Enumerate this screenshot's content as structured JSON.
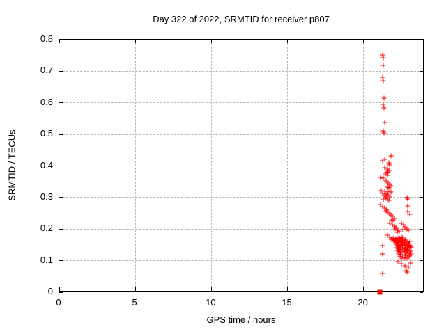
{
  "chart_data": {
    "type": "scatter",
    "title": "Day 322 of 2022, SRMTID for receiver p807",
    "xlabel": "GPS time / hours",
    "ylabel": "SRMTID / TECUs",
    "xlim": [
      0,
      24
    ],
    "ylim": [
      0,
      0.8
    ],
    "x_ticks": [
      {
        "value": 0,
        "label": "0"
      },
      {
        "value": 5,
        "label": "5"
      },
      {
        "value": 10,
        "label": "10"
      },
      {
        "value": 15,
        "label": "15"
      },
      {
        "value": 20,
        "label": "20"
      }
    ],
    "y_ticks": [
      {
        "value": 0.0,
        "label": "0"
      },
      {
        "value": 0.1,
        "label": "0.1"
      },
      {
        "value": 0.2,
        "label": "0.2"
      },
      {
        "value": 0.3,
        "label": "0.3"
      },
      {
        "value": 0.4,
        "label": "0.4"
      },
      {
        "value": 0.5,
        "label": "0.5"
      },
      {
        "value": 0.6,
        "label": "0.6"
      },
      {
        "value": 0.7,
        "label": "0.7"
      },
      {
        "value": 0.8,
        "label": "0.8"
      }
    ],
    "grid": "dashed",
    "legend": "none",
    "marker": "plus",
    "marker_color": "#ff0000",
    "grid_color": "#b4b4b4",
    "axis_color": "#000000",
    "background_color": "#ffffff",
    "points": [
      [
        21.27,
        0.752
      ],
      [
        21.28,
        0.742
      ],
      [
        21.3,
        0.718
      ],
      [
        21.27,
        0.681
      ],
      [
        21.29,
        0.669
      ],
      [
        21.33,
        0.615
      ],
      [
        21.3,
        0.596
      ],
      [
        21.36,
        0.585
      ],
      [
        21.4,
        0.538
      ],
      [
        21.32,
        0.512
      ],
      [
        21.36,
        0.505
      ],
      [
        21.79,
        0.431
      ],
      [
        21.4,
        0.42
      ],
      [
        21.25,
        0.417
      ],
      [
        21.68,
        0.409
      ],
      [
        21.7,
        0.404
      ],
      [
        21.37,
        0.394
      ],
      [
        21.59,
        0.391
      ],
      [
        21.72,
        0.386
      ],
      [
        21.63,
        0.382
      ],
      [
        21.52,
        0.379
      ],
      [
        21.45,
        0.374
      ],
      [
        21.56,
        0.371
      ],
      [
        21.12,
        0.364
      ],
      [
        21.3,
        0.361
      ],
      [
        21.49,
        0.352
      ],
      [
        21.62,
        0.346
      ],
      [
        21.71,
        0.342
      ],
      [
        21.8,
        0.337
      ],
      [
        21.58,
        0.333
      ],
      [
        21.67,
        0.33
      ],
      [
        21.16,
        0.322
      ],
      [
        21.39,
        0.32
      ],
      [
        21.58,
        0.319
      ],
      [
        21.8,
        0.317
      ],
      [
        21.26,
        0.313
      ],
      [
        21.49,
        0.311
      ],
      [
        21.62,
        0.308
      ],
      [
        21.35,
        0.306
      ],
      [
        21.53,
        0.303
      ],
      [
        21.71,
        0.301
      ],
      [
        21.44,
        0.298
      ],
      [
        21.59,
        0.296
      ],
      [
        21.3,
        0.294
      ],
      [
        21.66,
        0.292
      ],
      [
        21.12,
        0.278
      ],
      [
        21.26,
        0.271
      ],
      [
        21.39,
        0.267
      ],
      [
        21.53,
        0.263
      ],
      [
        21.49,
        0.258
      ],
      [
        21.62,
        0.253
      ],
      [
        21.71,
        0.249
      ],
      [
        21.8,
        0.245
      ],
      [
        21.9,
        0.24
      ],
      [
        22.03,
        0.234
      ],
      [
        21.94,
        0.229
      ],
      [
        21.85,
        0.226
      ],
      [
        21.71,
        0.218
      ],
      [
        21.9,
        0.214
      ],
      [
        22.03,
        0.209
      ],
      [
        22.17,
        0.205
      ],
      [
        22.08,
        0.201
      ],
      [
        22.26,
        0.196
      ],
      [
        22.35,
        0.192
      ],
      [
        22.21,
        0.19
      ],
      [
        22.49,
        0.218
      ],
      [
        22.63,
        0.214
      ],
      [
        22.72,
        0.207
      ],
      [
        22.86,
        0.201
      ],
      [
        22.95,
        0.196
      ],
      [
        22.58,
        0.199
      ],
      [
        21.58,
        0.181
      ],
      [
        21.71,
        0.174
      ],
      [
        21.8,
        0.168
      ],
      [
        21.9,
        0.17
      ],
      [
        21.99,
        0.16
      ],
      [
        22.08,
        0.165
      ],
      [
        22.17,
        0.157
      ],
      [
        22.26,
        0.163
      ],
      [
        22.44,
        0.159
      ],
      [
        22.84,
        0.3
      ],
      [
        22.9,
        0.295
      ],
      [
        22.9,
        0.273
      ],
      [
        22.91,
        0.256
      ],
      [
        23.04,
        0.247
      ],
      [
        22.0,
        0.172
      ],
      [
        22.1,
        0.17
      ],
      [
        22.2,
        0.168
      ],
      [
        22.3,
        0.171
      ],
      [
        22.4,
        0.169
      ],
      [
        22.5,
        0.166
      ],
      [
        22.6,
        0.17
      ],
      [
        22.7,
        0.167
      ],
      [
        22.35,
        0.173
      ],
      [
        22.55,
        0.174
      ],
      [
        22.05,
        0.162
      ],
      [
        22.15,
        0.158
      ],
      [
        22.25,
        0.16
      ],
      [
        22.35,
        0.156
      ],
      [
        22.45,
        0.161
      ],
      [
        22.55,
        0.157
      ],
      [
        22.65,
        0.159
      ],
      [
        22.75,
        0.162
      ],
      [
        22.85,
        0.158
      ],
      [
        22.95,
        0.155
      ],
      [
        23.05,
        0.16
      ],
      [
        22.1,
        0.152
      ],
      [
        22.2,
        0.148
      ],
      [
        22.3,
        0.15
      ],
      [
        22.4,
        0.146
      ],
      [
        22.5,
        0.151
      ],
      [
        22.6,
        0.147
      ],
      [
        22.7,
        0.149
      ],
      [
        22.8,
        0.152
      ],
      [
        22.9,
        0.146
      ],
      [
        23.0,
        0.15
      ],
      [
        23.1,
        0.148
      ],
      [
        22.15,
        0.142
      ],
      [
        22.25,
        0.138
      ],
      [
        22.35,
        0.14
      ],
      [
        22.45,
        0.136
      ],
      [
        22.55,
        0.141
      ],
      [
        22.65,
        0.137
      ],
      [
        22.75,
        0.139
      ],
      [
        22.85,
        0.142
      ],
      [
        22.95,
        0.136
      ],
      [
        23.05,
        0.14
      ],
      [
        23.15,
        0.143
      ],
      [
        22.2,
        0.132
      ],
      [
        22.3,
        0.128
      ],
      [
        22.4,
        0.13
      ],
      [
        22.5,
        0.126
      ],
      [
        22.6,
        0.131
      ],
      [
        22.7,
        0.127
      ],
      [
        22.8,
        0.129
      ],
      [
        22.9,
        0.132
      ],
      [
        23.0,
        0.126
      ],
      [
        23.1,
        0.13
      ],
      [
        22.3,
        0.122
      ],
      [
        22.45,
        0.118
      ],
      [
        22.6,
        0.12
      ],
      [
        22.75,
        0.116
      ],
      [
        22.9,
        0.121
      ],
      [
        23.05,
        0.117
      ],
      [
        23.15,
        0.122
      ],
      [
        22.4,
        0.112
      ],
      [
        22.55,
        0.108
      ],
      [
        22.7,
        0.11
      ],
      [
        22.85,
        0.107
      ],
      [
        23.0,
        0.112
      ],
      [
        22.26,
        0.097
      ],
      [
        22.49,
        0.09
      ],
      [
        22.72,
        0.084
      ],
      [
        22.95,
        0.079
      ],
      [
        22.8,
        0.068
      ],
      [
        22.86,
        0.064
      ],
      [
        23.1,
        0.092
      ],
      [
        21.24,
        0.148
      ],
      [
        21.24,
        0.121
      ],
      [
        21.24,
        0.06
      ]
    ],
    "special_points": [
      {
        "x": 21.09,
        "y": 0.0,
        "marker": "filled-square"
      }
    ]
  }
}
